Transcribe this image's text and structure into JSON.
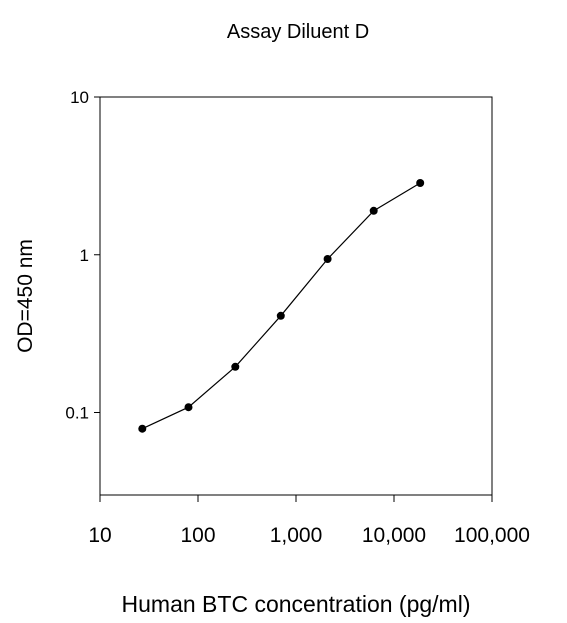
{
  "chart_data": {
    "type": "line",
    "title": "Assay Diluent D",
    "xlabel": "Human BTC concentration (pg/ml)",
    "ylabel": "OD=450 nm",
    "x_scale": "log",
    "y_scale": "log",
    "xlim": [
      10,
      100000
    ],
    "ylim": [
      0.03,
      10
    ],
    "x_ticks": [
      10,
      100,
      1000,
      10000,
      100000
    ],
    "x_tick_labels": [
      "10",
      "100",
      "1,000",
      "10,000",
      "100,000"
    ],
    "y_ticks": [
      0.1,
      1,
      10
    ],
    "y_tick_labels": [
      "0.1",
      "1",
      "10"
    ],
    "grid": false,
    "legend": "none",
    "series": [
      {
        "x": [
          27,
          80,
          240,
          700,
          2100,
          6200,
          18500
        ],
        "y": [
          0.079,
          0.108,
          0.195,
          0.41,
          0.94,
          1.9,
          2.85
        ]
      }
    ],
    "colors": {
      "line": "#000000",
      "marker": "#000000",
      "axes": "#000000"
    }
  }
}
